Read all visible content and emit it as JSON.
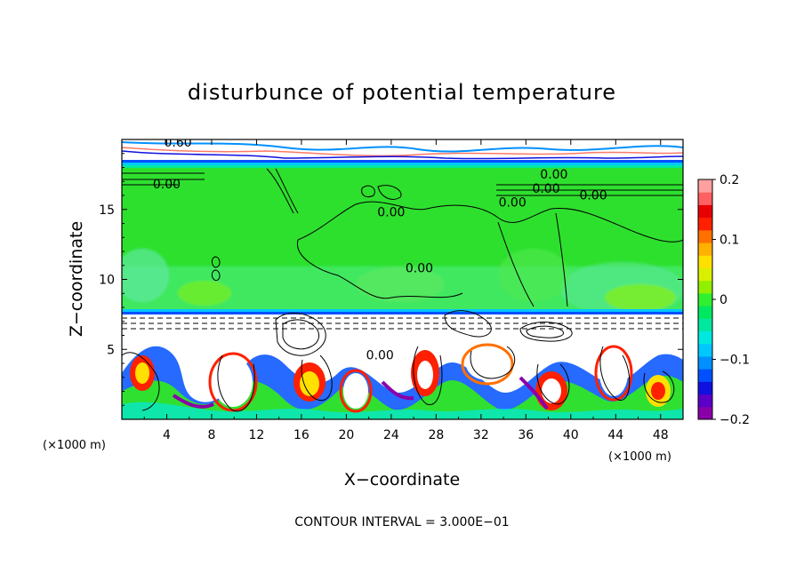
{
  "chart_data": {
    "type": "heatmap",
    "title": "disturbunce of potential temperature",
    "xlabel": "X−coordinate",
    "ylabel": "Z−coordinate",
    "x_unit": "(×1000 m)",
    "z_unit": "(×1000 m)",
    "xlim": [
      0,
      50
    ],
    "zlim": [
      0,
      20
    ],
    "x_ticks": [
      4,
      8,
      12,
      16,
      20,
      24,
      28,
      32,
      36,
      40,
      44,
      48
    ],
    "z_ticks": [
      5,
      10,
      15
    ],
    "colorbar": {
      "min": -0.2,
      "max": 0.2,
      "tick_values": [
        0.2,
        0.1,
        0,
        -0.1,
        -0.2
      ],
      "tick_labels": [
        "0.2",
        "0.1",
        "0",
        "−0.1",
        "−0.2"
      ],
      "colors": [
        "#8a00a8",
        "#5a00c8",
        "#1010e0",
        "#0050ff",
        "#0090ff",
        "#00c8ff",
        "#00e8e0",
        "#00e8a0",
        "#00e860",
        "#30f030",
        "#90f000",
        "#d8f000",
        "#ffe000",
        "#ffb000",
        "#ff7000",
        "#ff2000",
        "#e80000",
        "#ff6060",
        "#ffa0a0"
      ]
    },
    "contour_labels": [
      {
        "x": 5.0,
        "z": 19.5,
        "text": "0.60"
      },
      {
        "x": 4.0,
        "z": 16.5,
        "text": "0.00"
      },
      {
        "x": 24.0,
        "z": 14.5,
        "text": "0.00"
      },
      {
        "x": 26.5,
        "z": 10.5,
        "text": "0.00"
      },
      {
        "x": 34.8,
        "z": 15.2,
        "text": "0.00"
      },
      {
        "x": 37.8,
        "z": 16.2,
        "text": "0.00"
      },
      {
        "x": 38.5,
        "z": 17.2,
        "text": "0.00"
      },
      {
        "x": 42.0,
        "z": 15.7,
        "text": "0.00"
      },
      {
        "x": 23.0,
        "z": 4.3,
        "text": "0.00"
      }
    ],
    "contour_interval_text": "CONTOUR INTERVAL = 3.000E−01"
  }
}
